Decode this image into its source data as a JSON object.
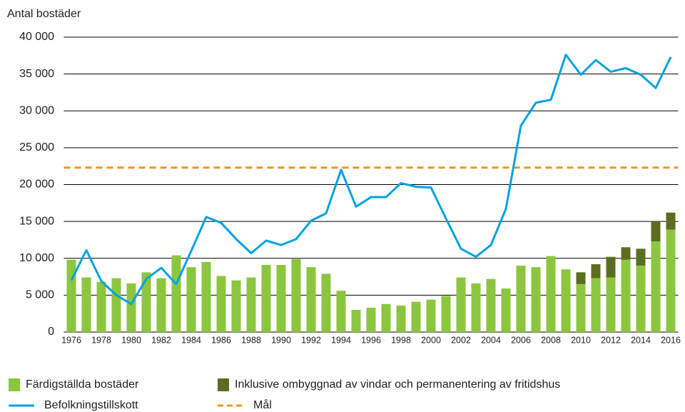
{
  "chart_data": {
    "type": "bar",
    "y_label": "Antal bostäder",
    "categories": [
      "1976",
      null,
      "1978",
      null,
      "1980",
      null,
      "1982",
      null,
      "1984",
      null,
      "1986",
      null,
      "1988",
      null,
      "1990",
      null,
      "1992",
      null,
      "1994",
      null,
      "1996",
      null,
      "1998",
      null,
      "2000",
      null,
      "2002",
      null,
      "2004",
      null,
      "2006",
      null,
      "2008",
      null,
      "2010",
      null,
      "2012",
      null,
      "2014",
      null,
      "2016"
    ],
    "series": [
      {
        "name": "Färdigställda bostäder",
        "color": "#8cc63f",
        "stack": true,
        "values": [
          9800,
          7400,
          6800,
          7300,
          6600,
          8100,
          7300,
          10400,
          8800,
          9500,
          7600,
          7000,
          7400,
          9100,
          9100,
          9900,
          8800,
          7900,
          5600,
          3000,
          3300,
          3800,
          3600,
          4100,
          4400,
          4900,
          7400,
          6600,
          7200,
          5900,
          9000,
          8800,
          10300,
          8500,
          6500,
          7300,
          7400,
          9800,
          9000,
          12300,
          13900
        ]
      },
      {
        "name": "Inklusive ombyggnad av vindar och permanentering av fritidshus",
        "color": "#5b6e1f",
        "stack": true,
        "values": [
          null,
          null,
          null,
          null,
          null,
          null,
          null,
          null,
          null,
          null,
          null,
          null,
          null,
          null,
          null,
          null,
          null,
          null,
          null,
          null,
          null,
          null,
          null,
          null,
          null,
          null,
          null,
          null,
          null,
          null,
          null,
          null,
          null,
          null,
          1600,
          1900,
          2800,
          1700,
          2300,
          2700,
          2300
        ]
      },
      {
        "name": "Befolkningstillskott",
        "color": "#00a3e0",
        "kind": "line",
        "values": [
          7000,
          11100,
          6900,
          5000,
          3800,
          7200,
          8700,
          6500,
          11000,
          15600,
          14800,
          12600,
          10700,
          12400,
          11800,
          12600,
          15100,
          16100,
          22000,
          17000,
          18300,
          18300,
          20200,
          19700,
          19600,
          15400,
          11300,
          10200,
          11800,
          16700,
          28000,
          31100,
          31500,
          37600,
          34900,
          36900,
          35300,
          35800,
          34900,
          33100,
          37300
        ]
      }
    ],
    "target": {
      "name": "Mål",
      "value": 22300,
      "color": "#f7941d"
    },
    "ylim": [
      0,
      40000
    ],
    "yticks": [
      0,
      {
        "value": 5000,
        "label": "5 000"
      },
      {
        "value": 10000,
        "label": "10 000"
      },
      {
        "value": 15000,
        "label": "15 000"
      },
      {
        "value": 20000,
        "label": "20 000"
      },
      {
        "value": 25000,
        "label": "25 000"
      },
      {
        "value": 30000,
        "label": "30 000"
      },
      {
        "value": 35000,
        "label": "35 000"
      },
      {
        "value": 40000,
        "label": "40 000"
      }
    ],
    "grid": true
  }
}
